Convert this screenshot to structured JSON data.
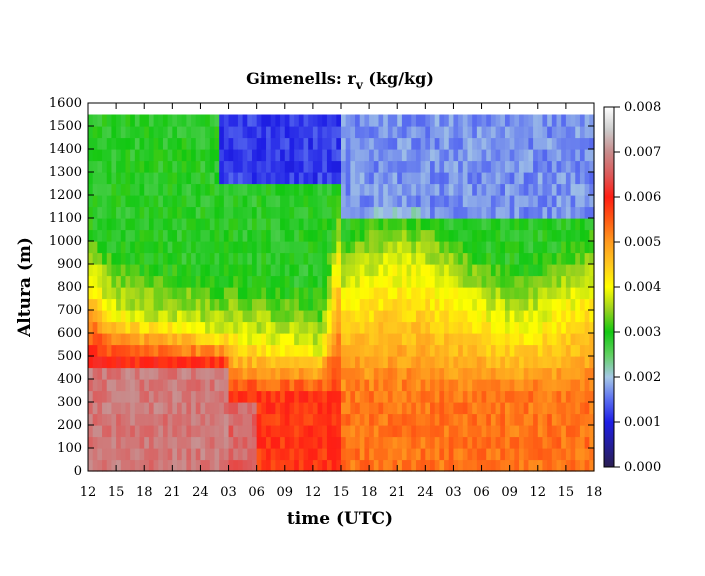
{
  "chart_data": {
    "type": "heatmap",
    "title": {
      "main": "Gimenells: r",
      "sub": "v",
      "tail": " (kg/kg)"
    },
    "xlabel": "time (UTC)",
    "ylabel": "Altura (m)",
    "x_tick_labels": [
      "12",
      "15",
      "18",
      "21",
      "24",
      "03",
      "06",
      "09",
      "12",
      "15",
      "18",
      "21",
      "24",
      "03",
      "06",
      "09",
      "12",
      "15",
      "18"
    ],
    "y_ticks": [
      0,
      100,
      200,
      300,
      400,
      500,
      600,
      700,
      800,
      900,
      1000,
      1100,
      1200,
      1300,
      1400,
      1500,
      1600
    ],
    "ylim": [
      0,
      1600
    ],
    "x_range_hours": [
      0,
      54
    ],
    "data_top_m": 1550,
    "colorbar": {
      "ticks": [
        "0.000",
        "0.001",
        "0.002",
        "0.003",
        "0.004",
        "0.005",
        "0.006",
        "0.007",
        "0.008"
      ],
      "range": [
        0,
        0.008
      ],
      "stops": [
        {
          "v": 0.0,
          "color": "#2a1e50"
        },
        {
          "v": 0.001,
          "color": "#1e1ee6"
        },
        {
          "v": 0.0015,
          "color": "#5a6ef0"
        },
        {
          "v": 0.002,
          "color": "#a6c8e6"
        },
        {
          "v": 0.0025,
          "color": "#5fd05f"
        },
        {
          "v": 0.003,
          "color": "#12c812"
        },
        {
          "v": 0.0035,
          "color": "#9ad21e"
        },
        {
          "v": 0.004,
          "color": "#ffff00"
        },
        {
          "v": 0.0045,
          "color": "#ffc81e"
        },
        {
          "v": 0.005,
          "color": "#ff9a1e"
        },
        {
          "v": 0.0055,
          "color": "#ff5a14"
        },
        {
          "v": 0.006,
          "color": "#ff1e14"
        },
        {
          "v": 0.0065,
          "color": "#dc5a5a"
        },
        {
          "v": 0.007,
          "color": "#c88c8c"
        },
        {
          "v": 0.0075,
          "color": "#cdcdcd"
        },
        {
          "v": 0.008,
          "color": "#ffffff"
        }
      ]
    },
    "description_bands": [
      {
        "hours": [
          0,
          15
        ],
        "surface_rv": 0.0065,
        "note": "moist near-surface layer up to ~450 m"
      },
      {
        "hours": [
          15,
          26
        ],
        "surface_rv": 0.0058
      },
      {
        "hours": [
          26,
          54
        ],
        "surface_rv": 0.0053
      }
    ]
  }
}
